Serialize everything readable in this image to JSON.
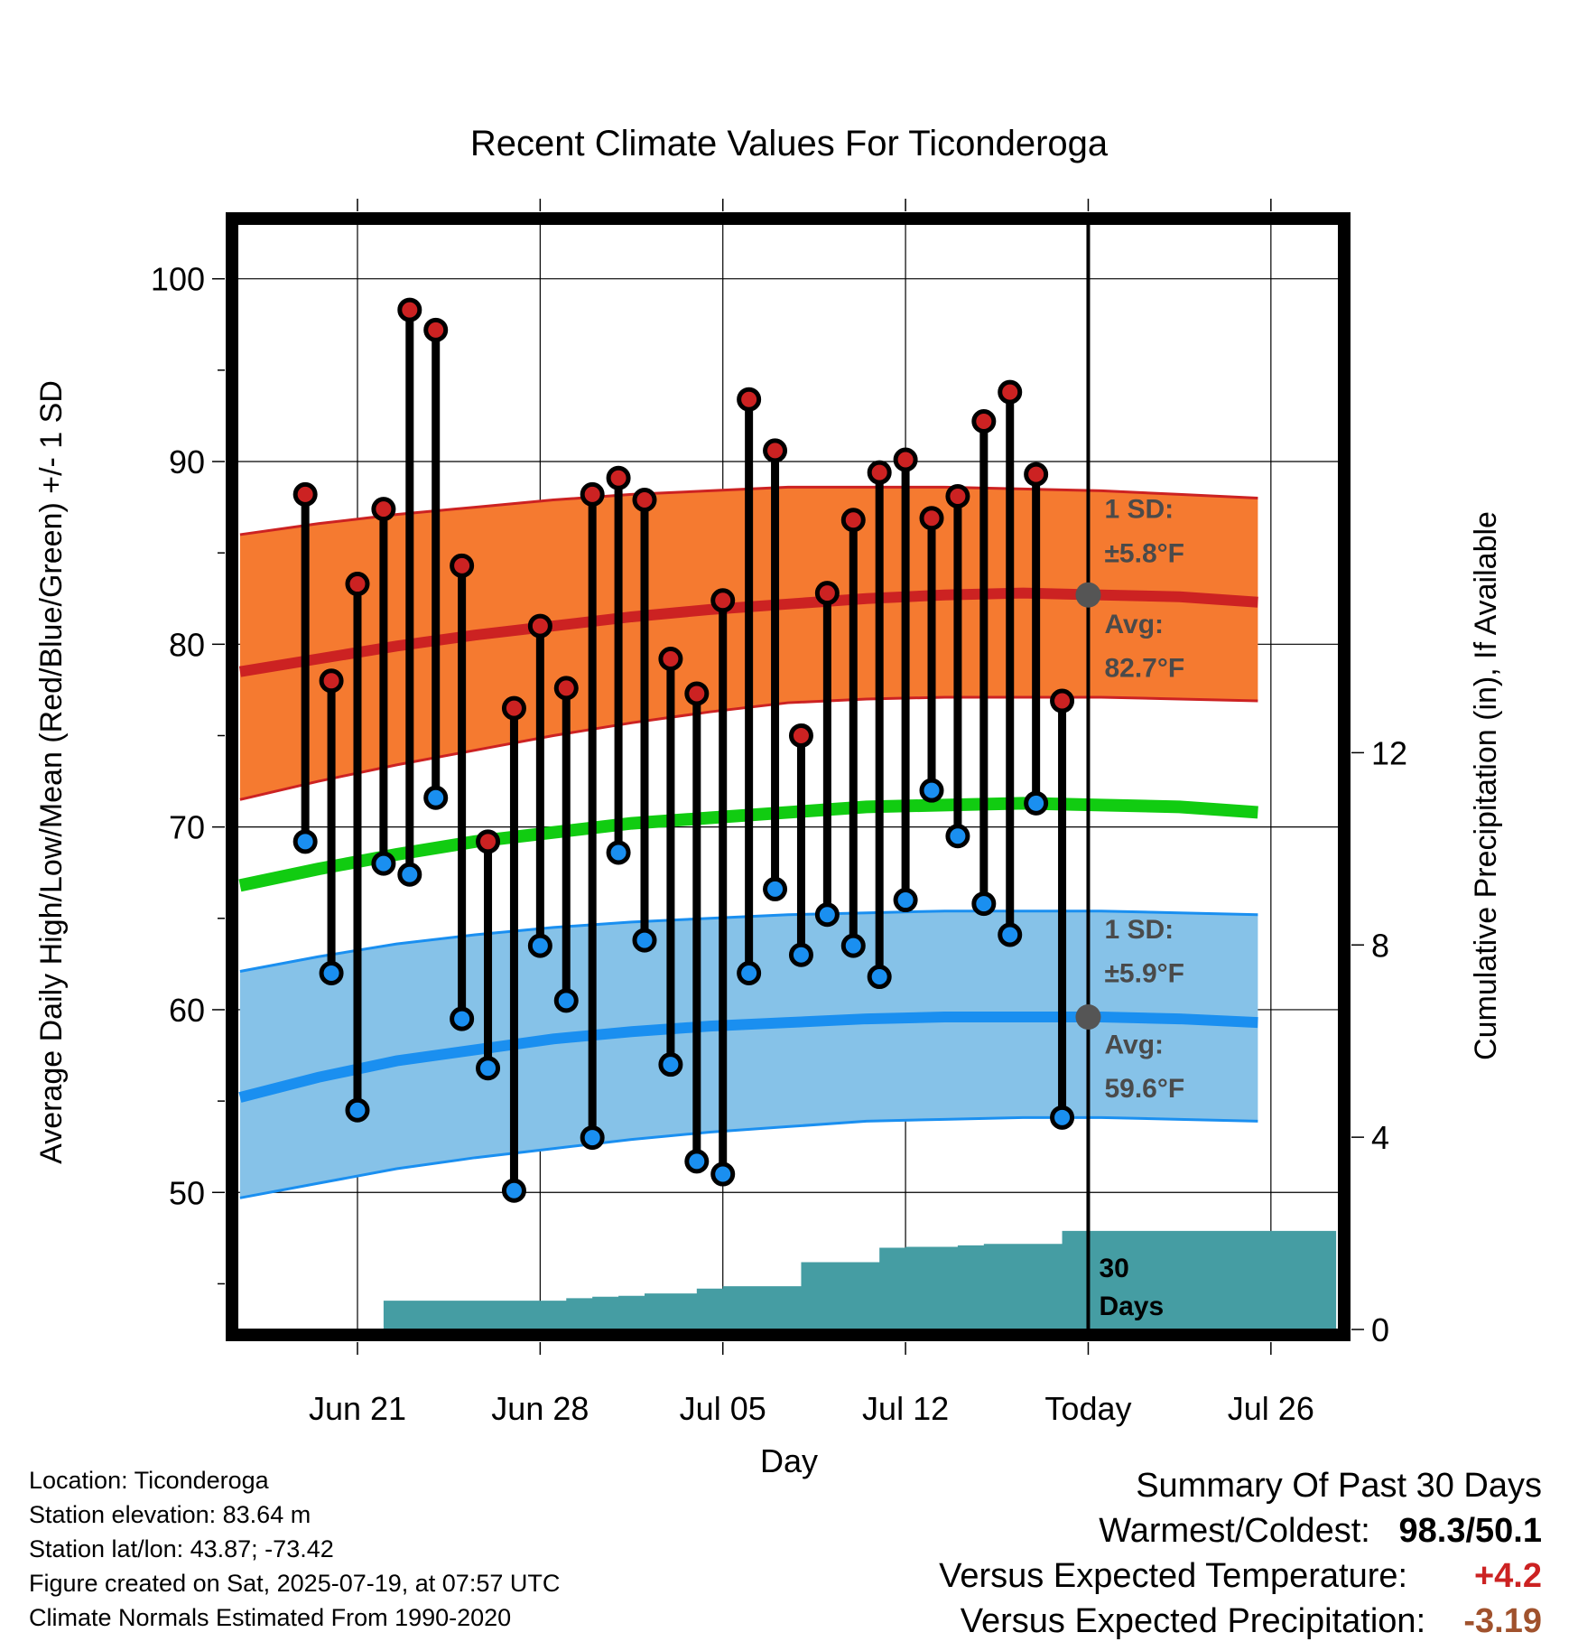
{
  "chart_data": {
    "type": "line",
    "title": "Recent Climate Values For Ticonderoga",
    "xlabel": "Day",
    "ylabel_left": "Average Daily High/Low/Mean (Red/Blue/Green) +/- 1 SD",
    "ylabel_right": "Cumulative Precipitation (in), If Available",
    "ylim": [
      42.5,
      103
    ],
    "y_ticks": [
      50,
      60,
      70,
      80,
      90,
      100
    ],
    "xlim": [
      -2.6,
      39.6
    ],
    "x_ticks": [
      {
        "day": 2,
        "label": "Jun 21"
      },
      {
        "day": 9,
        "label": "Jun 28"
      },
      {
        "day": 16,
        "label": "Jul 05"
      },
      {
        "day": 23,
        "label": "Jul 12"
      },
      {
        "day": 30,
        "label": "Today"
      },
      {
        "day": 37,
        "label": "Jul 26"
      }
    ],
    "precip_ylim": [
      0,
      23
    ],
    "precip_ticks": [
      0,
      4,
      8,
      12
    ],
    "x_reference": "days since Jun 19 (Today = Jul 19)",
    "daily_high": [
      88.2,
      78.0,
      83.3,
      87.4,
      98.3,
      97.2,
      84.3,
      69.2,
      76.5,
      81.0,
      77.6,
      88.2,
      89.1,
      87.9,
      79.2,
      77.3,
      82.4,
      93.4,
      90.6,
      75.0,
      82.8,
      86.8,
      89.4,
      90.1,
      86.9,
      88.1,
      92.2,
      93.8,
      89.3,
      76.9
    ],
    "daily_low": [
      69.2,
      62.0,
      54.5,
      68.0,
      67.4,
      71.6,
      59.5,
      56.8,
      50.1,
      63.5,
      60.5,
      53.0,
      68.6,
      63.8,
      57.0,
      51.7,
      51.0,
      62.0,
      66.6,
      63.0,
      65.2,
      63.5,
      61.8,
      66.0,
      72.0,
      69.5,
      65.8,
      64.1,
      71.3,
      54.1
    ],
    "normal_high_avg": [
      78.5,
      79.2,
      79.9,
      80.5,
      81.0,
      81.5,
      81.9,
      82.2,
      82.5,
      82.7,
      82.8,
      82.7,
      82.6,
      82.3
    ],
    "normal_high_upper": [
      86.0,
      86.6,
      87.1,
      87.5,
      87.9,
      88.2,
      88.4,
      88.6,
      88.6,
      88.6,
      88.5,
      88.4,
      88.2,
      88.0
    ],
    "normal_high_lower": [
      71.5,
      72.5,
      73.4,
      74.2,
      75.0,
      75.7,
      76.3,
      76.8,
      77.0,
      77.1,
      77.1,
      77.1,
      77.0,
      76.9
    ],
    "normal_low_avg": [
      55.2,
      56.3,
      57.2,
      57.8,
      58.4,
      58.8,
      59.1,
      59.3,
      59.5,
      59.6,
      59.6,
      59.6,
      59.5,
      59.3
    ],
    "normal_low_upper": [
      62.1,
      62.9,
      63.6,
      64.1,
      64.5,
      64.8,
      65.0,
      65.2,
      65.3,
      65.4,
      65.4,
      65.4,
      65.3,
      65.2
    ],
    "normal_low_lower": [
      49.7,
      50.5,
      51.3,
      51.9,
      52.4,
      52.9,
      53.3,
      53.6,
      53.9,
      54.0,
      54.1,
      54.1,
      54.0,
      53.9
    ],
    "normal_mean": [
      66.8,
      67.7,
      68.5,
      69.2,
      69.7,
      70.2,
      70.5,
      70.8,
      71.1,
      71.2,
      71.3,
      71.2,
      71.1,
      70.8
    ],
    "normal_days": [
      -2.5,
      0.5,
      3.5,
      6.5,
      9.5,
      12.5,
      15.5,
      18.5,
      21.5,
      24.5,
      27.5,
      30.5,
      33.5,
      36.5
    ],
    "precip_cumulative": {
      "days": [
        0,
        1,
        2,
        3,
        5,
        10,
        11,
        12,
        13,
        14,
        15,
        16,
        17,
        18,
        19,
        20,
        21,
        22,
        23,
        24,
        25,
        26,
        27,
        28,
        29,
        30,
        39.5
      ],
      "values": [
        0,
        0,
        0,
        0.6,
        0.6,
        0.65,
        0.68,
        0.7,
        0.75,
        0.75,
        0.85,
        0.9,
        0.9,
        0.9,
        1.4,
        1.4,
        1.4,
        1.7,
        1.72,
        1.72,
        1.75,
        1.78,
        1.78,
        1.78,
        2.05,
        2.05,
        2.05
      ]
    },
    "annotations": {
      "high_sd": "1 SD:",
      "high_sd_value": "±5.8°F",
      "high_avg": "Avg:",
      "high_avg_value": "82.7°F",
      "low_sd": "1 SD:",
      "low_sd_value": "±5.9°F",
      "low_avg": "Avg:",
      "low_avg_value": "59.6°F",
      "days_num": "30",
      "days_word": "Days"
    },
    "colors": {
      "high": "#cc2222",
      "high_band": "#f57a30",
      "low": "#1a8ff0",
      "low_band": "#86c2e8",
      "mean": "#11cc11",
      "precip": "#459da3"
    },
    "grid": true
  },
  "footer": {
    "location": "Location: Ticonderoga",
    "elevation": "Station elevation: 83.64 m",
    "latlon": "Station lat/lon: 43.87; -73.42",
    "created": "Figure created on Sat, 2025-07-19, at 07:57 UTC",
    "normals": "Climate Normals Estimated From 1990-2020"
  },
  "summary": {
    "title": "Summary Of Past 30 Days",
    "warm_cold_label": "Warmest/Coldest:",
    "warm_cold_value": "98.3/50.1",
    "temp_label": "Versus Expected Temperature:",
    "temp_value": "+4.2",
    "precip_label": "Versus Expected Precipitation:",
    "precip_value": "-3.19"
  }
}
